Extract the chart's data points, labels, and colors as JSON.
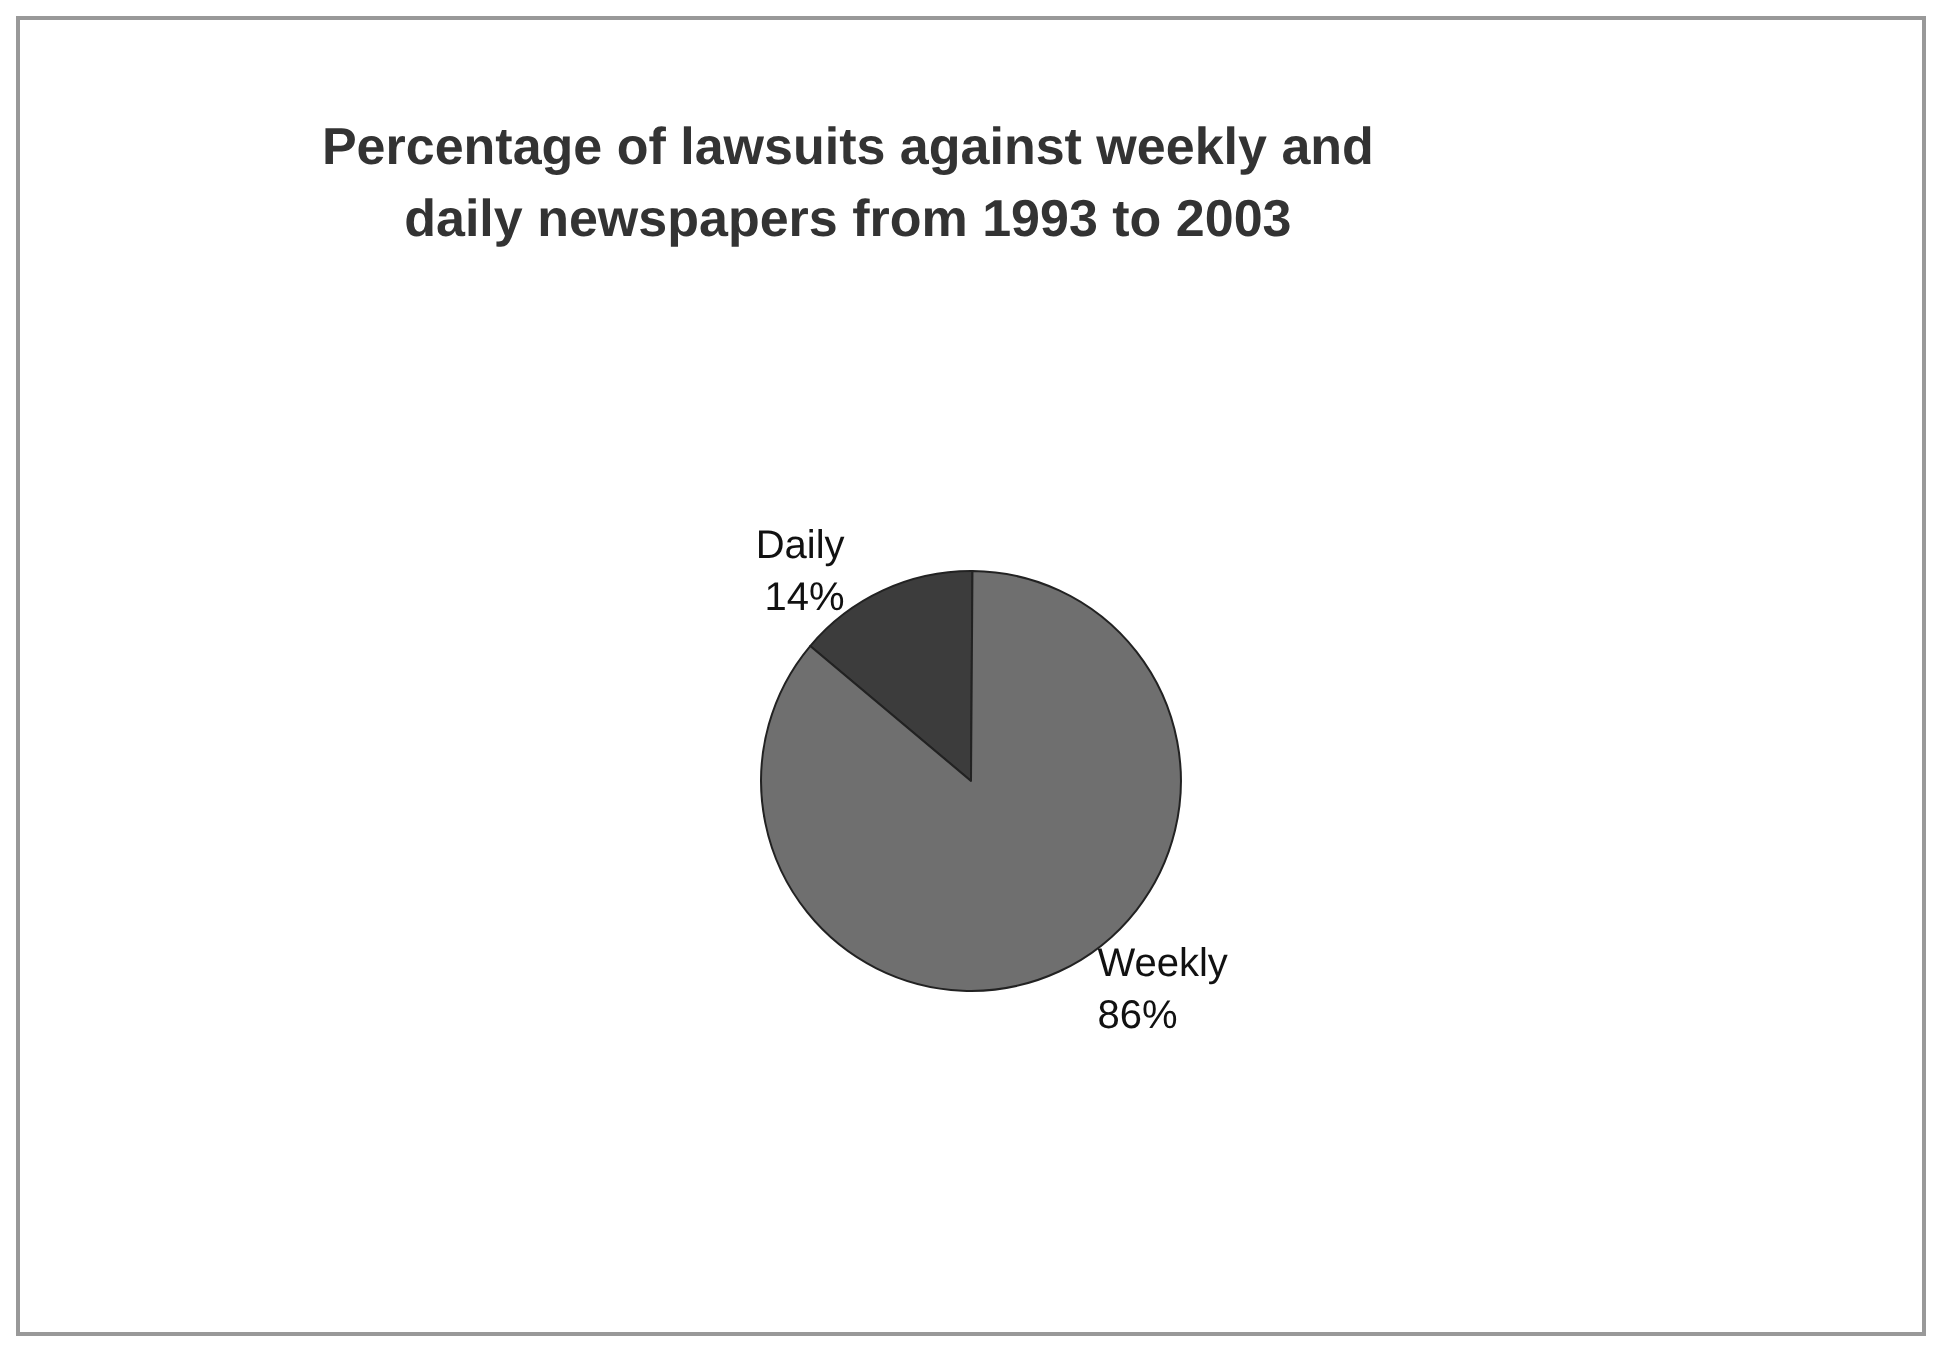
{
  "chart_data": {
    "type": "pie",
    "title": "Percentage of lawsuits against weekly and\ndaily newspapers from 1993 to 2003",
    "categories": [
      "Daily",
      "Weekly"
    ],
    "values": [
      14,
      86
    ],
    "value_labels": [
      "14%",
      "86%"
    ],
    "colors": [
      "#3c3c3c",
      "#6f6f6f"
    ],
    "legend": false
  }
}
